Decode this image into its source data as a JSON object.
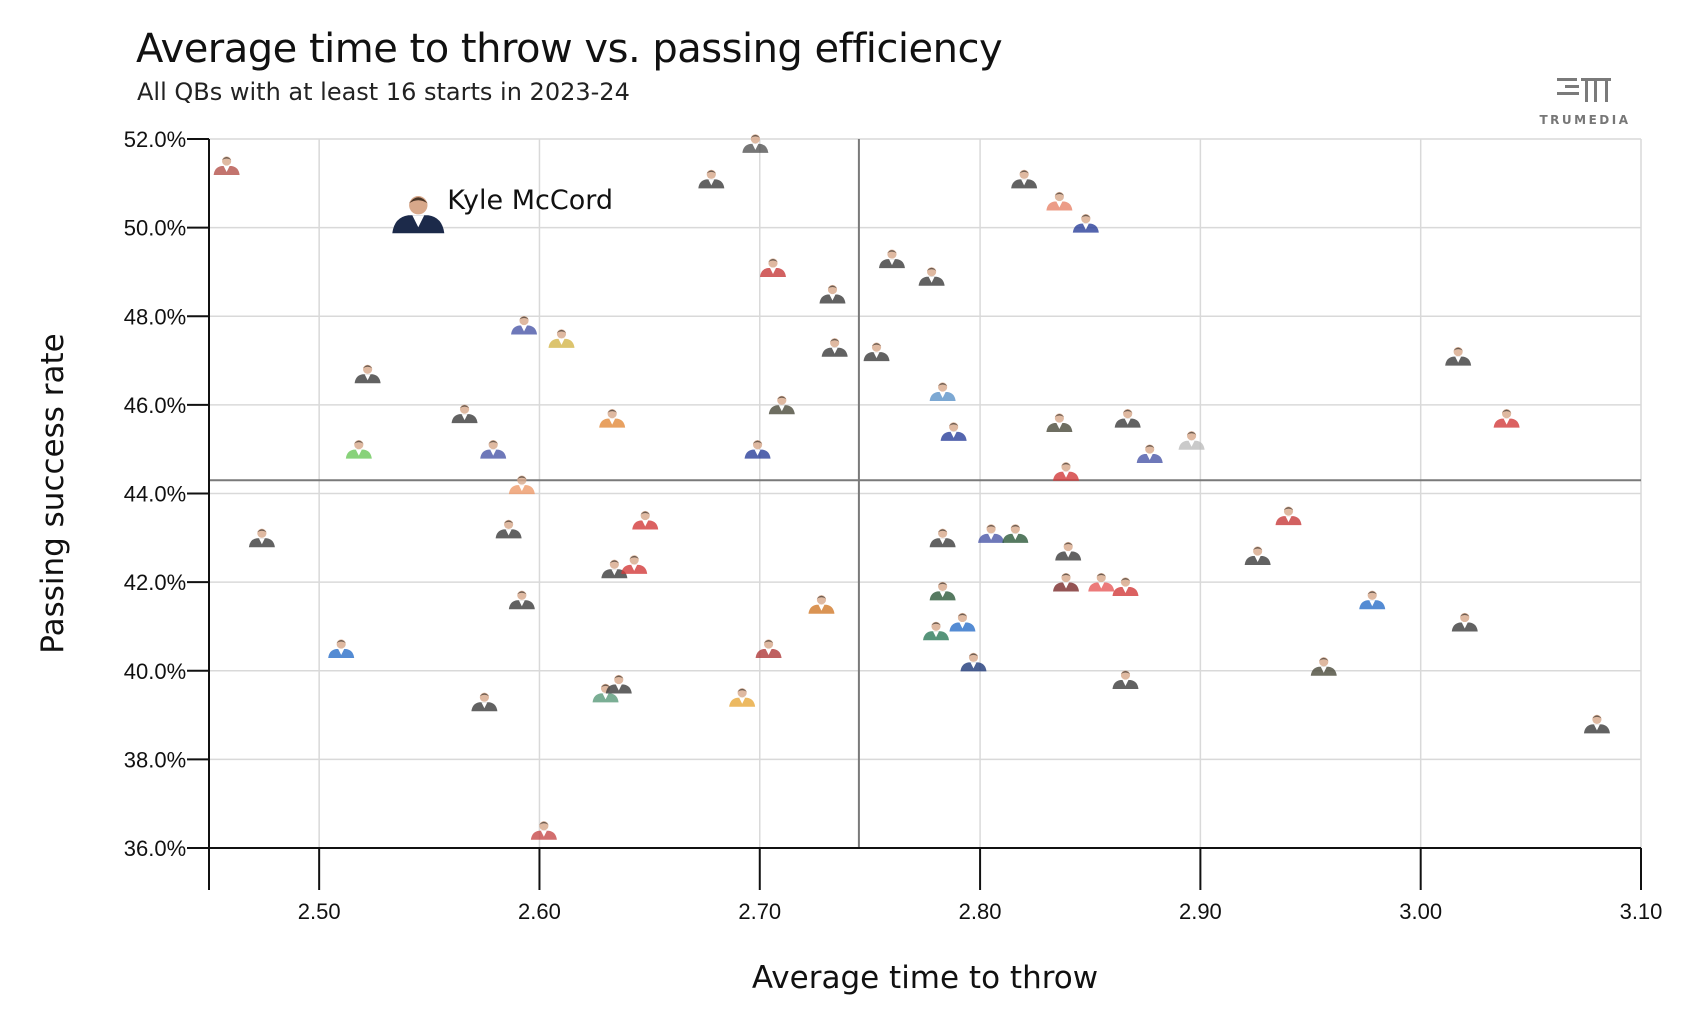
{
  "title": "Average time to throw vs. passing efficiency",
  "subtitle": "All QBs with at least 16 starts in 2023-24",
  "brand": {
    "name": "TRUMEDIA",
    "icon": "trumedia-logo-icon",
    "color": "#7a7a7a"
  },
  "chart_data": {
    "type": "scatter",
    "title": "Average time to throw vs. passing efficiency",
    "subtitle": "All QBs with at least 16 starts in 2023-24",
    "xlabel": "Average time to throw",
    "ylabel": "Passing success rate",
    "xlim": [
      2.45,
      3.1
    ],
    "ylim": [
      36.0,
      52.0
    ],
    "x_ticks": [
      2.5,
      2.6,
      2.7,
      2.8,
      2.9,
      3.0,
      3.1
    ],
    "x_tick_labels": [
      "2.50",
      "2.60",
      "2.70",
      "2.80",
      "2.90",
      "3.00",
      "3.10"
    ],
    "y_ticks": [
      36,
      38,
      40,
      42,
      44,
      46,
      48,
      50,
      52
    ],
    "y_tick_labels": [
      "36.0%",
      "38.0%",
      "40.0%",
      "42.0%",
      "44.0%",
      "46.0%",
      "48.0%",
      "50.0%",
      "52.0%"
    ],
    "grid": true,
    "reference_lines": {
      "x_average": 2.745,
      "y_average": 44.3
    },
    "highlight": {
      "name": "Kyle McCord",
      "x": 2.545,
      "y": 50.1
    },
    "points": [
      {
        "x": 2.458,
        "y": 51.3,
        "color": "#b5524a"
      },
      {
        "x": 2.698,
        "y": 51.8,
        "color": "#555555"
      },
      {
        "x": 2.678,
        "y": 51.0,
        "color": "#3b3b3b"
      },
      {
        "x": 2.82,
        "y": 51.0,
        "color": "#3b3b3b"
      },
      {
        "x": 2.836,
        "y": 50.5,
        "color": "#e8846a"
      },
      {
        "x": 2.848,
        "y": 50.0,
        "color": "#2a3f9a"
      },
      {
        "x": 2.706,
        "y": 49.0,
        "color": "#c83a3a"
      },
      {
        "x": 2.76,
        "y": 49.2,
        "color": "#3b3b3b"
      },
      {
        "x": 2.778,
        "y": 48.8,
        "color": "#3b3b3b"
      },
      {
        "x": 2.733,
        "y": 48.4,
        "color": "#3b3b3b"
      },
      {
        "x": 2.593,
        "y": 47.7,
        "color": "#4a57a8"
      },
      {
        "x": 2.61,
        "y": 47.4,
        "color": "#d4b64a"
      },
      {
        "x": 2.734,
        "y": 47.2,
        "color": "#3b3b3b"
      },
      {
        "x": 2.753,
        "y": 47.1,
        "color": "#3b3b3b"
      },
      {
        "x": 2.522,
        "y": 46.6,
        "color": "#3b3b3b"
      },
      {
        "x": 3.017,
        "y": 47.0,
        "color": "#3b3b3b"
      },
      {
        "x": 2.783,
        "y": 46.2,
        "color": "#5c93c9"
      },
      {
        "x": 2.71,
        "y": 45.9,
        "color": "#4a4a3a"
      },
      {
        "x": 2.566,
        "y": 45.7,
        "color": "#3b3b3b"
      },
      {
        "x": 2.633,
        "y": 45.6,
        "color": "#e38a3a"
      },
      {
        "x": 2.836,
        "y": 45.5,
        "color": "#4a4a3a"
      },
      {
        "x": 2.867,
        "y": 45.6,
        "color": "#3b3b3b"
      },
      {
        "x": 3.039,
        "y": 45.6,
        "color": "#d33a3a"
      },
      {
        "x": 2.788,
        "y": 45.3,
        "color": "#2a3f9a"
      },
      {
        "x": 2.896,
        "y": 45.1,
        "color": "#bdbdbd"
      },
      {
        "x": 2.518,
        "y": 44.9,
        "color": "#6bc75a"
      },
      {
        "x": 2.579,
        "y": 44.9,
        "color": "#4a57a8"
      },
      {
        "x": 2.699,
        "y": 44.9,
        "color": "#2a3f9a"
      },
      {
        "x": 2.877,
        "y": 44.8,
        "color": "#4a57a8"
      },
      {
        "x": 2.839,
        "y": 44.4,
        "color": "#d33a3a"
      },
      {
        "x": 2.592,
        "y": 44.1,
        "color": "#ee9a6a"
      },
      {
        "x": 2.474,
        "y": 42.9,
        "color": "#3b3b3b"
      },
      {
        "x": 2.586,
        "y": 43.1,
        "color": "#3b3b3b"
      },
      {
        "x": 2.648,
        "y": 43.3,
        "color": "#d33a3a"
      },
      {
        "x": 2.94,
        "y": 43.4,
        "color": "#c83a3a"
      },
      {
        "x": 2.783,
        "y": 42.9,
        "color": "#3b3b3b"
      },
      {
        "x": 2.805,
        "y": 43.0,
        "color": "#4a57a8"
      },
      {
        "x": 2.816,
        "y": 43.0,
        "color": "#2d5a3a"
      },
      {
        "x": 2.84,
        "y": 42.6,
        "color": "#3b3b3b"
      },
      {
        "x": 2.926,
        "y": 42.5,
        "color": "#3b3b3b"
      },
      {
        "x": 2.634,
        "y": 42.2,
        "color": "#3b3b3b"
      },
      {
        "x": 2.643,
        "y": 42.3,
        "color": "#d33a3a"
      },
      {
        "x": 2.839,
        "y": 41.9,
        "color": "#7a2a2a"
      },
      {
        "x": 2.855,
        "y": 41.9,
        "color": "#e85a5a"
      },
      {
        "x": 2.866,
        "y": 41.8,
        "color": "#d33a3a"
      },
      {
        "x": 2.783,
        "y": 41.7,
        "color": "#2d5a3a"
      },
      {
        "x": 2.592,
        "y": 41.5,
        "color": "#3b3b3b"
      },
      {
        "x": 2.728,
        "y": 41.4,
        "color": "#d27a2a"
      },
      {
        "x": 2.978,
        "y": 41.5,
        "color": "#2a6fc9"
      },
      {
        "x": 2.51,
        "y": 40.4,
        "color": "#2a6fc9"
      },
      {
        "x": 2.704,
        "y": 40.4,
        "color": "#b03a3a"
      },
      {
        "x": 2.78,
        "y": 40.8,
        "color": "#2d7a5a"
      },
      {
        "x": 2.792,
        "y": 41.0,
        "color": "#2a6fc9"
      },
      {
        "x": 2.797,
        "y": 40.1,
        "color": "#1f3a7a"
      },
      {
        "x": 3.02,
        "y": 41.0,
        "color": "#3b3b3b"
      },
      {
        "x": 2.956,
        "y": 40.0,
        "color": "#4a4a3a"
      },
      {
        "x": 2.575,
        "y": 39.2,
        "color": "#3b3b3b"
      },
      {
        "x": 2.63,
        "y": 39.4,
        "color": "#5a9a7a"
      },
      {
        "x": 2.636,
        "y": 39.6,
        "color": "#3b3b3b"
      },
      {
        "x": 2.692,
        "y": 39.3,
        "color": "#e8a83a"
      },
      {
        "x": 2.866,
        "y": 39.7,
        "color": "#3b3b3b"
      },
      {
        "x": 3.08,
        "y": 38.7,
        "color": "#3b3b3b"
      },
      {
        "x": 2.602,
        "y": 36.3,
        "color": "#c84a4a"
      }
    ]
  }
}
